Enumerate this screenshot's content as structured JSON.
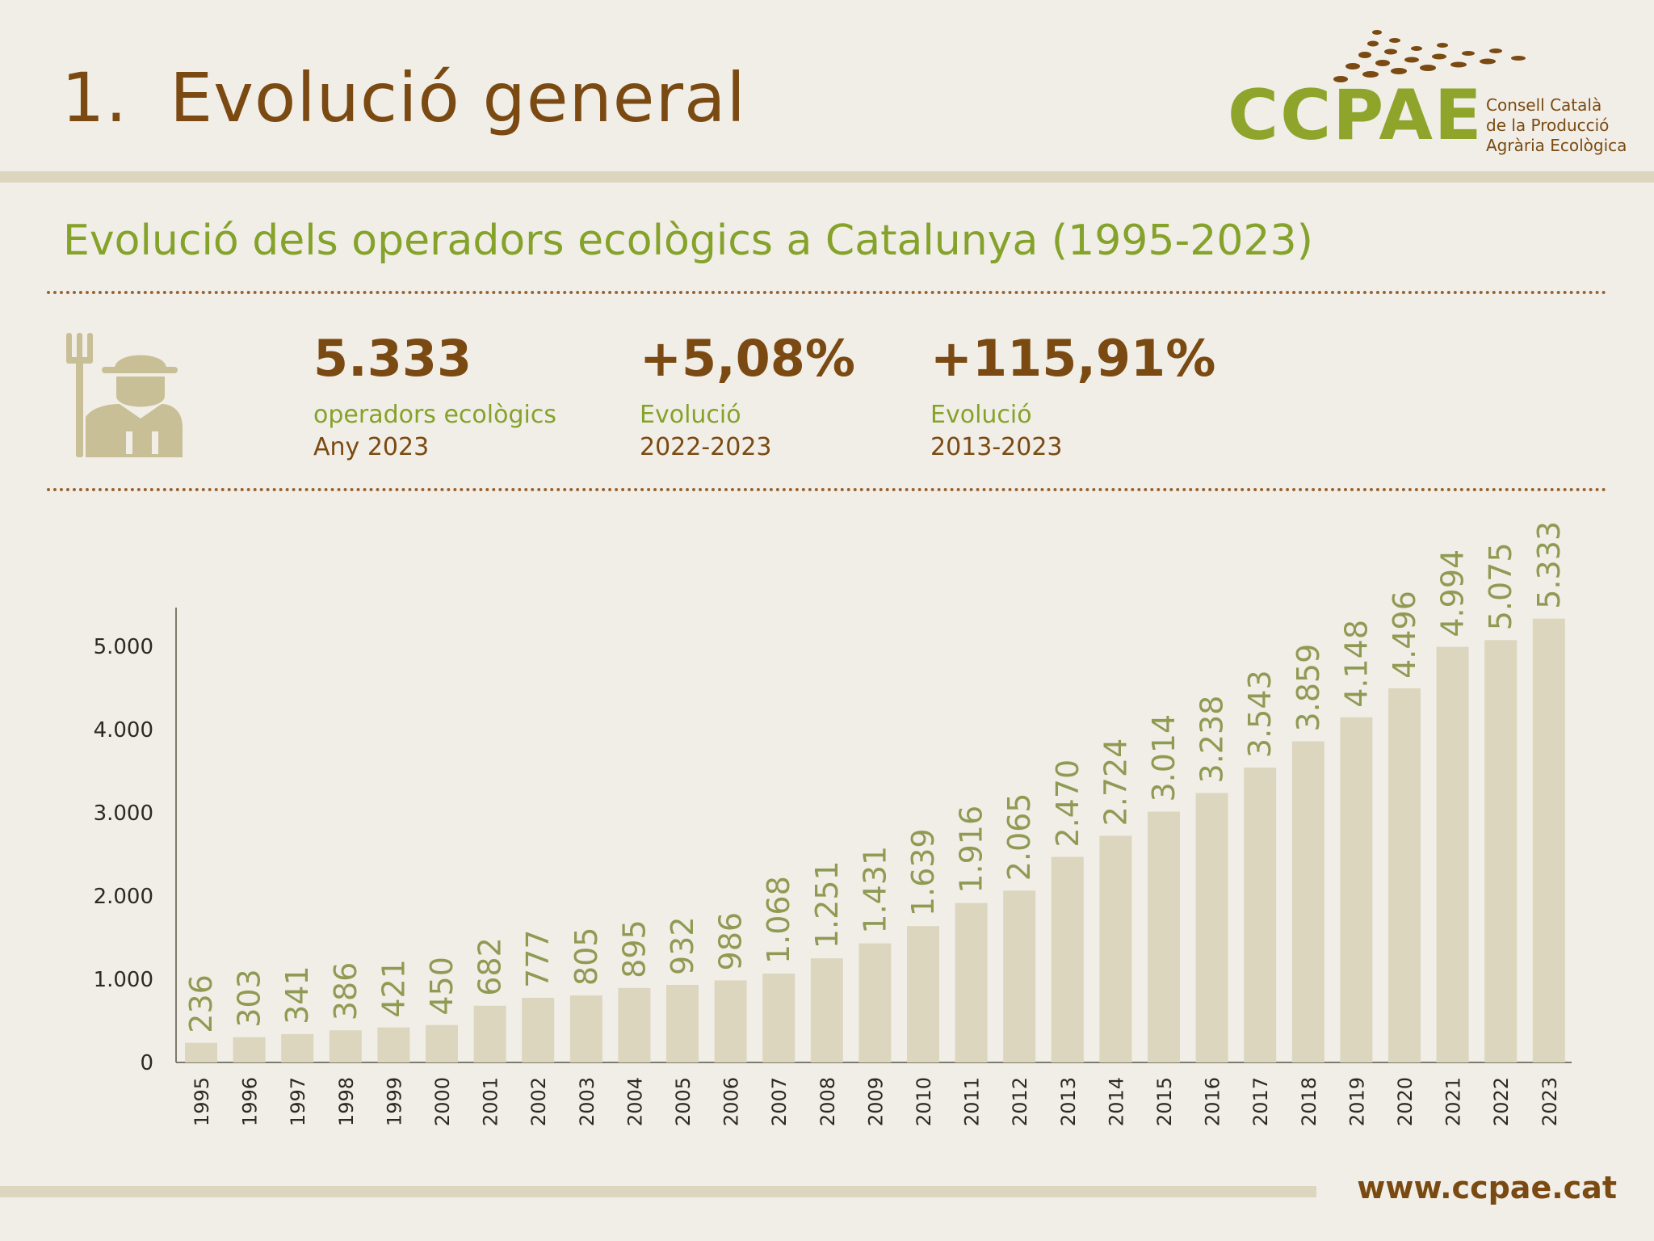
{
  "header": {
    "section_number": "1.",
    "section_title": "Evolució general"
  },
  "logo": {
    "name": "CCPAE",
    "subtitle_lines": [
      "Consell Català",
      "de la Producció",
      "Agrària Ecològica"
    ]
  },
  "colors": {
    "brown": "#7a4a12",
    "green": "#85a22a",
    "bar": "#dcd6bf",
    "background": "#f1eee7"
  },
  "chart_title": "Evolució dels operadors ecològics a Catalunya (1995-2023)",
  "icon": "farmer-with-pitchfork-icon",
  "stats": [
    {
      "value": "5.333",
      "label": "operadors ecològics",
      "period": "Any 2023"
    },
    {
      "value": "+5,08%",
      "label": "Evolució",
      "period": "2022-2023"
    },
    {
      "value": "+115,91%",
      "label": "Evolució",
      "period": "2013-2023"
    }
  ],
  "chart_data": {
    "type": "bar",
    "title": "",
    "xlabel": "",
    "ylabel": "",
    "ylim": [
      0,
      5000
    ],
    "yticks": [
      0,
      1000,
      2000,
      3000,
      4000,
      5000
    ],
    "ytick_labels": [
      "0",
      "1.000",
      "2.000",
      "3.000",
      "4.000",
      "5.000"
    ],
    "grid": false,
    "categories": [
      "1995",
      "1996",
      "1997",
      "1998",
      "1999",
      "2000",
      "2001",
      "2002",
      "2003",
      "2004",
      "2005",
      "2006",
      "2007",
      "2008",
      "2009",
      "2010",
      "2011",
      "2012",
      "2013",
      "2014",
      "2015",
      "2016",
      "2017",
      "2018",
      "2019",
      "2020",
      "2021",
      "2022",
      "2023"
    ],
    "values": [
      236,
      303,
      341,
      386,
      421,
      450,
      682,
      777,
      805,
      895,
      932,
      986,
      1068,
      1251,
      1431,
      1639,
      1916,
      2065,
      2470,
      2724,
      3014,
      3238,
      3543,
      3859,
      4148,
      4496,
      4994,
      5075,
      5333
    ],
    "value_labels": [
      "236",
      "303",
      "341",
      "386",
      "421",
      "450",
      "682",
      "777",
      "805",
      "895",
      "932",
      "986",
      "1.068",
      "1.251",
      "1.431",
      "1.639",
      "1.916",
      "2.065",
      "2.470",
      "2.724",
      "3.014",
      "3.238",
      "3.543",
      "3.859",
      "4.148",
      "4.496",
      "4.994",
      "5.075",
      "5.333"
    ]
  },
  "footer": {
    "url": "www.ccpae.cat"
  }
}
